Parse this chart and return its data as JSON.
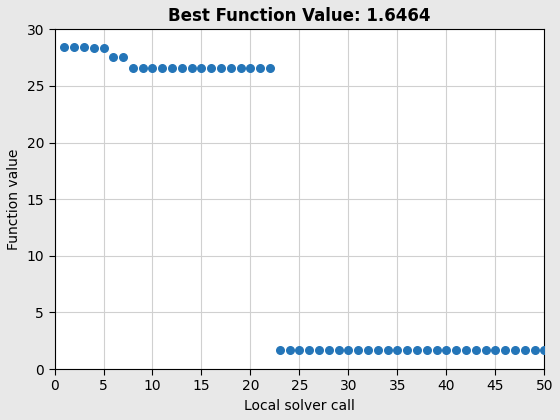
{
  "title": "Best Function Value: 1.6464",
  "xlabel": "Local solver call",
  "ylabel": "Function value",
  "xlim": [
    0,
    50
  ],
  "ylim": [
    0,
    30
  ],
  "xticks": [
    0,
    5,
    10,
    15,
    20,
    25,
    30,
    35,
    40,
    45,
    50
  ],
  "yticks": [
    0,
    5,
    10,
    15,
    20,
    25,
    30
  ],
  "dot_color": "#2475b8",
  "dot_size": 30,
  "figure_facecolor": "#e8e8e8",
  "axes_facecolor": "#ffffff",
  "grid_color": "#d0d0d0",
  "x_values": [
    1,
    2,
    3,
    4,
    5,
    6,
    7,
    8,
    9,
    10,
    11,
    12,
    13,
    14,
    15,
    16,
    17,
    18,
    19,
    20,
    21,
    22,
    23,
    24,
    25,
    26,
    27,
    28,
    29,
    30,
    31,
    32,
    33,
    34,
    35,
    36,
    37,
    38,
    39,
    40,
    41,
    42,
    43,
    44,
    45,
    46,
    47,
    48,
    49,
    50
  ],
  "y_values": [
    28.4,
    28.4,
    28.4,
    28.35,
    28.35,
    27.55,
    27.55,
    26.55,
    26.55,
    26.55,
    26.55,
    26.55,
    26.55,
    26.55,
    26.55,
    26.55,
    26.55,
    26.55,
    26.55,
    26.55,
    26.55,
    26.55,
    1.6464,
    1.6464,
    1.6464,
    1.6464,
    1.6464,
    1.6464,
    1.6464,
    1.6464,
    1.6464,
    1.6464,
    1.6464,
    1.6464,
    1.6464,
    1.6464,
    1.6464,
    1.6464,
    1.6464,
    1.6464,
    1.6464,
    1.6464,
    1.6464,
    1.6464,
    1.6464,
    1.6464,
    1.6464,
    1.6464,
    1.6464,
    1.6464
  ],
  "title_fontsize": 12,
  "label_fontsize": 10,
  "tick_fontsize": 10
}
